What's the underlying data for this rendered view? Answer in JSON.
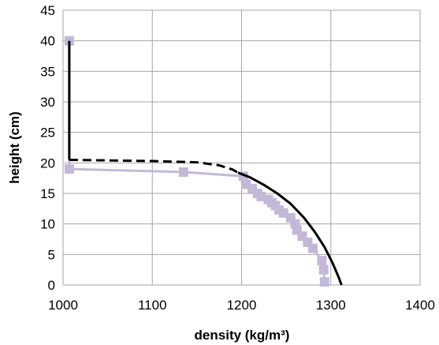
{
  "chart_data": {
    "type": "line",
    "xlabel": "density (kg/m³)",
    "ylabel": "height (cm)",
    "xlim": [
      1000,
      1400
    ],
    "ylim": [
      0,
      45
    ],
    "x_ticks": [
      1000,
      1100,
      1200,
      1300,
      1400
    ],
    "y_ticks": [
      0,
      5,
      10,
      15,
      20,
      25,
      30,
      35,
      40,
      45
    ],
    "grid": true,
    "legend": "none",
    "series": [
      {
        "style": "markers-line",
        "color": "#c4b8d8",
        "points": [
          [
            1007,
            40
          ],
          [
            1007,
            19
          ],
          [
            1135,
            18.5
          ],
          [
            1202,
            17.8
          ],
          [
            1205,
            16.5
          ],
          [
            1212,
            15.8
          ],
          [
            1218,
            15
          ],
          [
            1222,
            14.5
          ],
          [
            1230,
            14
          ],
          [
            1234,
            13.5
          ],
          [
            1238,
            13
          ],
          [
            1242,
            12.3
          ],
          [
            1247,
            11.8
          ],
          [
            1255,
            11
          ],
          [
            1260,
            10
          ],
          [
            1262,
            9
          ],
          [
            1268,
            8
          ],
          [
            1274,
            7
          ],
          [
            1280,
            6
          ],
          [
            1290,
            4
          ],
          [
            1292,
            2.5
          ],
          [
            1293,
            0.5
          ]
        ]
      },
      {
        "style": "solid",
        "color": "#000000",
        "points": [
          [
            1007,
            40
          ],
          [
            1007,
            20.5
          ]
        ]
      },
      {
        "style": "dashed",
        "color": "#000000",
        "points": [
          [
            1007,
            20.5
          ],
          [
            1050,
            20.4
          ],
          [
            1100,
            20.3
          ],
          [
            1150,
            20.1
          ],
          [
            1175,
            19.6
          ],
          [
            1190,
            18.9
          ],
          [
            1196,
            18.4
          ]
        ]
      },
      {
        "style": "solid",
        "color": "#000000",
        "points": [
          [
            1196,
            18.4
          ],
          [
            1210,
            17.6
          ],
          [
            1225,
            16.4
          ],
          [
            1240,
            15
          ],
          [
            1255,
            13.3
          ],
          [
            1270,
            11
          ],
          [
            1282,
            8.7
          ],
          [
            1293,
            6.2
          ],
          [
            1302,
            3.6
          ],
          [
            1309,
            1.2
          ],
          [
            1312,
            0
          ]
        ]
      }
    ]
  }
}
